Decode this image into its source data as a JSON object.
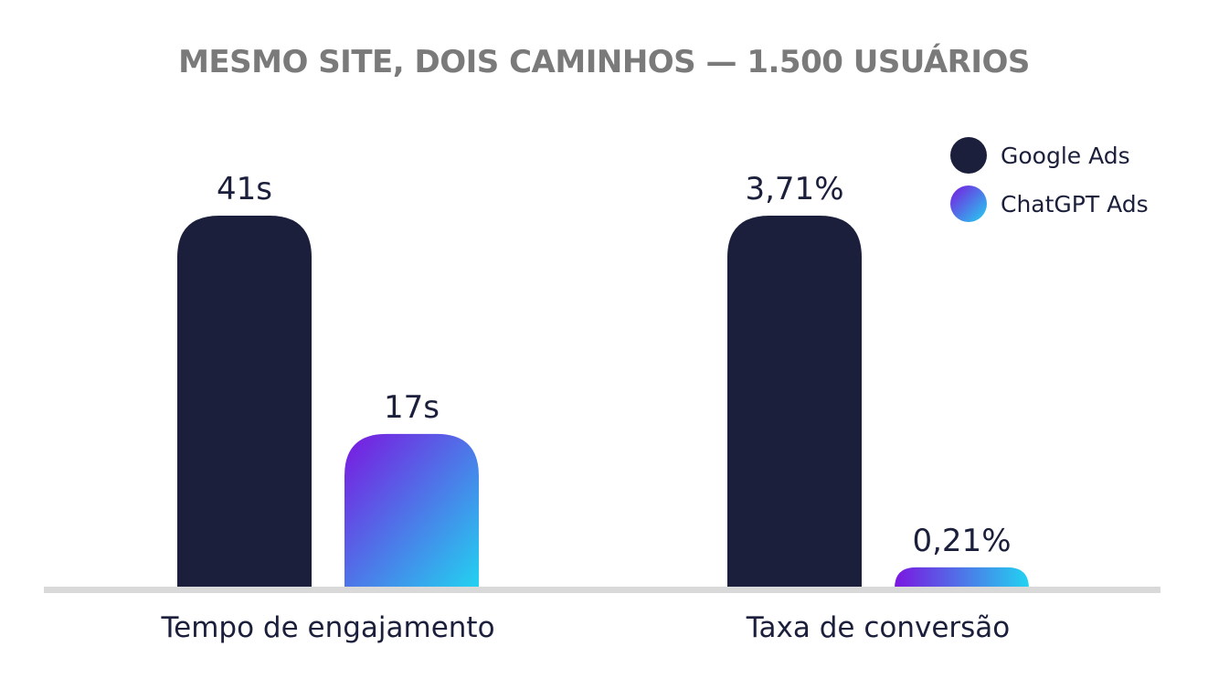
{
  "chart_data": {
    "type": "bar",
    "title": "MESMO SITE, DOIS CAMINHOS — 1.500 USUÁRIOS",
    "categories": [
      "Tempo de engajamento",
      "Taxa de conversão"
    ],
    "series": [
      {
        "name": "Google Ads",
        "color": "#1b1f3b",
        "values": [
          41,
          3.71
        ],
        "labels": [
          "41s",
          "3,71%"
        ]
      },
      {
        "name": "ChatGPT Ads",
        "color_gradient": [
          "#7b16e0",
          "#22d3f0"
        ],
        "values": [
          17,
          0.21
        ],
        "labels": [
          "17s",
          "0,21%"
        ]
      }
    ],
    "category_scale_max": [
      41,
      3.71
    ],
    "legend_position": "top-right",
    "grid": false
  }
}
